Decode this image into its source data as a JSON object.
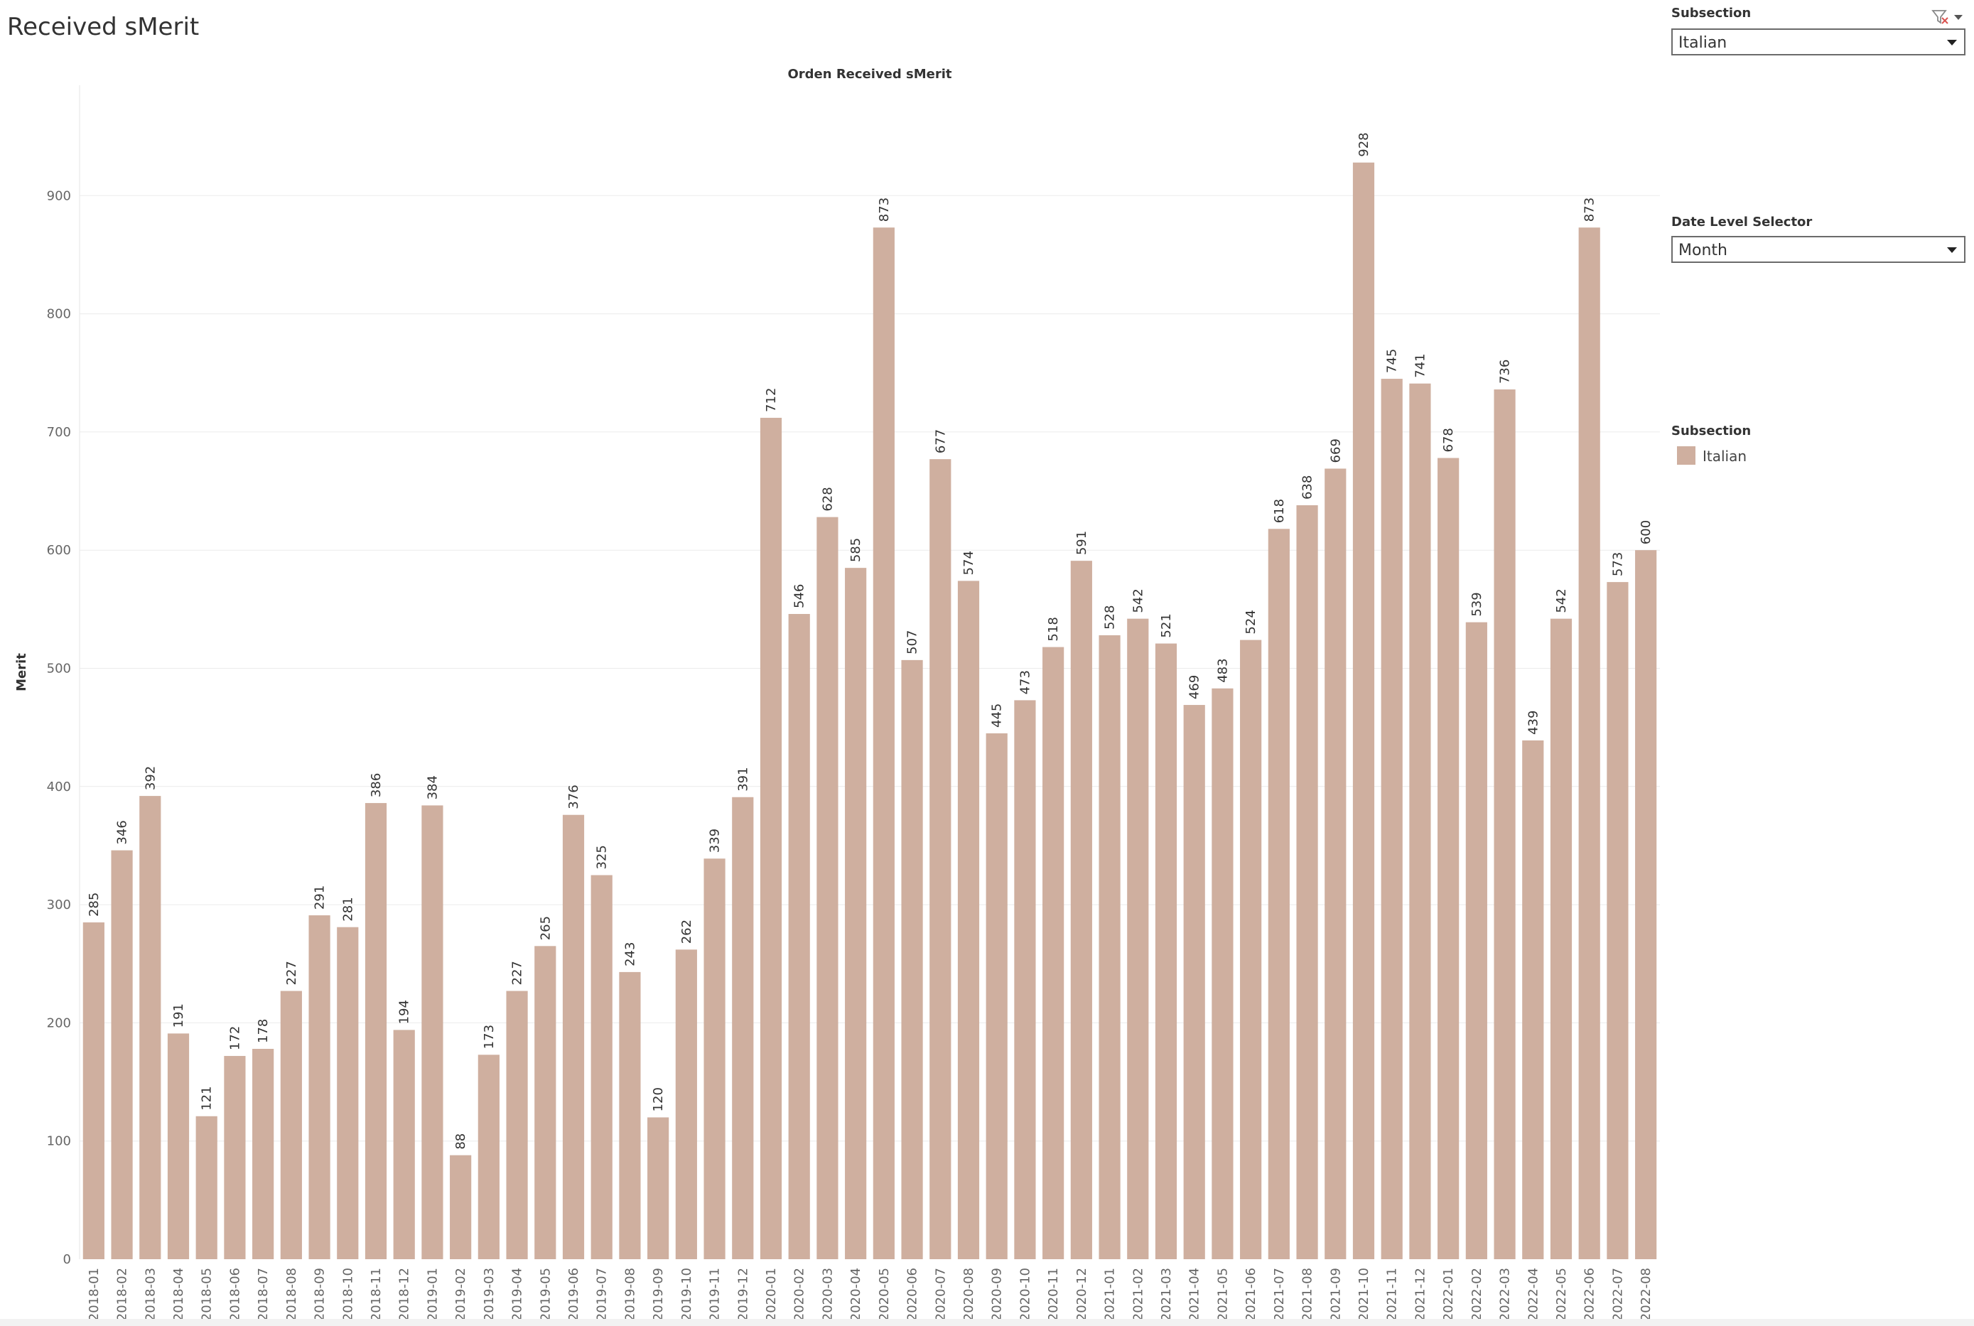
{
  "page": {
    "title": "Received sMerit"
  },
  "filters": {
    "subsection": {
      "label": "Subsection",
      "value": "Italian"
    },
    "date_level": {
      "label": "Date Level Selector",
      "value": "Month"
    }
  },
  "legend": {
    "title": "Subsection",
    "items": [
      {
        "label": "Italian",
        "color": "#cfaf9f"
      }
    ]
  },
  "icons": {
    "filter_clear": "filter-clear-icon",
    "menu": "chevron-down-icon"
  },
  "colors": {
    "bar": "#cfaf9f",
    "grid": "#ebebeb",
    "axis_text": "#666666",
    "label_text": "#333333"
  },
  "chart_data": {
    "type": "bar",
    "title": "Orden Received sMerit",
    "xlabel": "",
    "ylabel": "Merit",
    "ylim": [
      0,
      990
    ],
    "yticks": [
      0,
      100,
      200,
      300,
      400,
      500,
      600,
      700,
      800,
      900
    ],
    "grid": true,
    "categories": [
      "2018-01",
      "2018-02",
      "2018-03",
      "2018-04",
      "2018-05",
      "2018-06",
      "2018-07",
      "2018-08",
      "2018-09",
      "2018-10",
      "2018-11",
      "2018-12",
      "2019-01",
      "2019-02",
      "2019-03",
      "2019-04",
      "2019-05",
      "2019-06",
      "2019-07",
      "2019-08",
      "2019-09",
      "2019-10",
      "2019-11",
      "2019-12",
      "2020-01",
      "2020-02",
      "2020-03",
      "2020-04",
      "2020-05",
      "2020-06",
      "2020-07",
      "2020-08",
      "2020-09",
      "2020-10",
      "2020-11",
      "2020-12",
      "2021-01",
      "2021-02",
      "2021-03",
      "2021-04",
      "2021-05",
      "2021-06",
      "2021-07",
      "2021-08",
      "2021-09",
      "2021-10",
      "2021-11",
      "2021-12",
      "2022-01",
      "2022-02",
      "2022-03",
      "2022-04",
      "2022-05",
      "2022-06",
      "2022-07",
      "2022-08"
    ],
    "series": [
      {
        "name": "Italian",
        "values": [
          285,
          346,
          392,
          191,
          121,
          172,
          178,
          227,
          291,
          281,
          386,
          194,
          384,
          88,
          173,
          227,
          265,
          376,
          325,
          243,
          120,
          262,
          339,
          391,
          712,
          546,
          628,
          585,
          873,
          507,
          677,
          574,
          445,
          473,
          518,
          591,
          528,
          542,
          521,
          469,
          483,
          524,
          618,
          638,
          669,
          928,
          745,
          741,
          678,
          539,
          736,
          439,
          542,
          873,
          573,
          600
        ]
      }
    ]
  }
}
